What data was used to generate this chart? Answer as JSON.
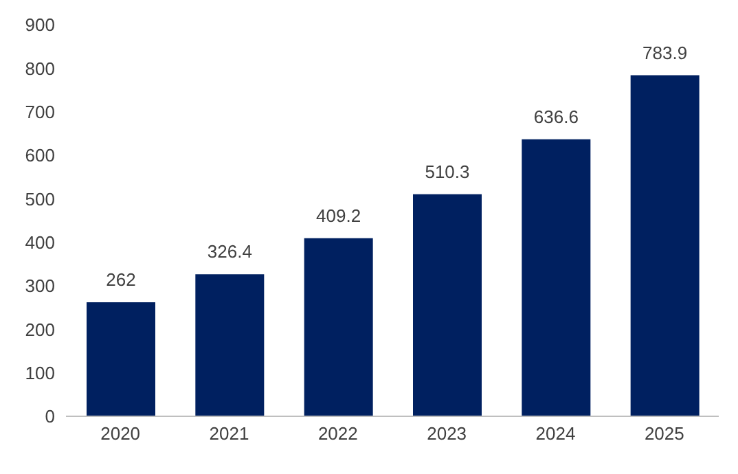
{
  "chart_data": {
    "type": "bar",
    "categories": [
      "2020",
      "2021",
      "2022",
      "2023",
      "2024",
      "2025"
    ],
    "values": [
      262,
      326.4,
      409.2,
      510.3,
      636.6,
      783.9
    ],
    "color": "#002060",
    "ylim": [
      0,
      900
    ],
    "yticks": [
      0,
      100,
      200,
      300,
      400,
      500,
      600,
      700,
      800,
      900
    ],
    "data_labels": true,
    "grid": false,
    "legend": false
  }
}
